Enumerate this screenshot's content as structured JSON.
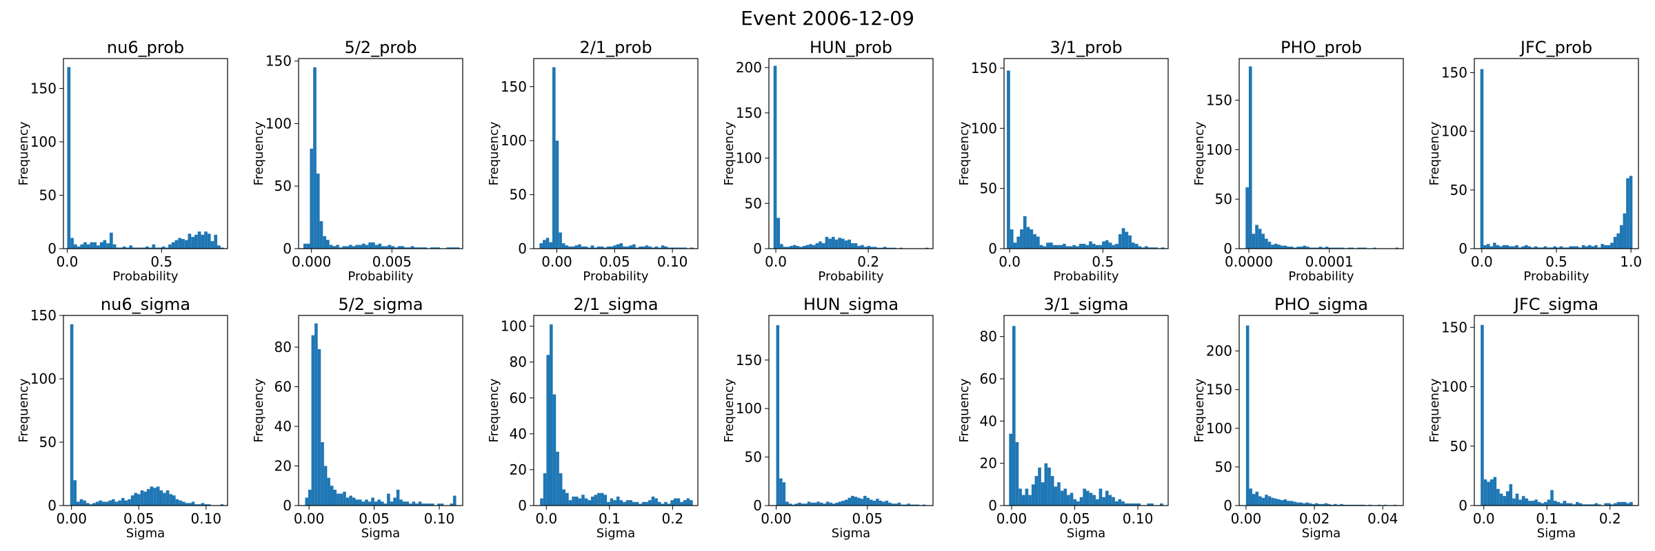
{
  "figure": {
    "title": "Event 2006-12-09"
  },
  "chart_data": [
    {
      "type": "bar",
      "title": "nu6_prob",
      "xlabel": "Probability",
      "ylabel": "Frequency",
      "xlim": [
        -0.02,
        0.85
      ],
      "ylim": [
        0,
        178
      ],
      "xticks": [
        0,
        0.5
      ],
      "xtick_labels": [
        "0.0",
        "0.5"
      ],
      "yticks": [
        0,
        50,
        100,
        150
      ],
      "bin_range": [
        0,
        0.83
      ],
      "values": [
        170,
        10,
        4,
        2,
        4,
        6,
        4,
        6,
        6,
        3,
        6,
        8,
        5,
        15,
        4,
        1,
        1,
        2,
        1,
        3,
        1,
        1,
        1,
        1,
        2,
        1,
        4,
        1,
        1,
        2,
        1,
        4,
        6,
        8,
        10,
        9,
        8,
        14,
        11,
        13,
        16,
        13,
        16,
        14,
        7,
        13,
        3,
        1
      ]
    },
    {
      "type": "bar",
      "title": "5/2_prob",
      "xlabel": "Probability",
      "ylabel": "Frequency",
      "xlim": [
        -0.0008,
        0.0094
      ],
      "ylim": [
        0,
        152
      ],
      "xticks": [
        0,
        0.005
      ],
      "xtick_labels": [
        "0.000",
        "0.005"
      ],
      "yticks": [
        0,
        50,
        100,
        150
      ],
      "bin_range": [
        -0.0005,
        0.0092
      ],
      "values": [
        4,
        4,
        80,
        145,
        60,
        22,
        10,
        7,
        3,
        2,
        3,
        1,
        2,
        2,
        3,
        2,
        3,
        3,
        4,
        3,
        5,
        5,
        3,
        4,
        2,
        2,
        3,
        2,
        1,
        2,
        2,
        1,
        1,
        2,
        1,
        1,
        1,
        1,
        0,
        1,
        1,
        1,
        0,
        0,
        1,
        1,
        1,
        1
      ]
    },
    {
      "type": "bar",
      "title": "2/1_prob",
      "xlabel": "Probability",
      "ylabel": "Frequency",
      "xlim": [
        -0.02,
        0.122
      ],
      "ylim": [
        0,
        176
      ],
      "xticks": [
        0,
        0.05,
        0.1
      ],
      "xtick_labels": [
        "0.00",
        "0.05",
        "0.10"
      ],
      "yticks": [
        0,
        50,
        100,
        150
      ],
      "bin_range": [
        -0.015,
        0.118
      ],
      "values": [
        5,
        8,
        10,
        6,
        168,
        100,
        15,
        5,
        3,
        2,
        2,
        3,
        4,
        2,
        2,
        1,
        3,
        1,
        2,
        2,
        1,
        2,
        2,
        3,
        4,
        5,
        2,
        2,
        3,
        4,
        1,
        2,
        2,
        3,
        2,
        1,
        2,
        1,
        3,
        2,
        1,
        1,
        1,
        1,
        1,
        1,
        0,
        1
      ]
    },
    {
      "type": "bar",
      "title": "HUN_prob",
      "xlabel": "Probability",
      "ylabel": "Frequency",
      "xlim": [
        -0.015,
        0.34
      ],
      "ylim": [
        0,
        210
      ],
      "xticks": [
        0,
        0.2
      ],
      "xtick_labels": [
        "0.0",
        "0.2"
      ],
      "yticks": [
        0,
        50,
        100,
        150,
        200
      ],
      "bin_range": [
        -0.005,
        0.33
      ],
      "values": [
        202,
        34,
        5,
        2,
        2,
        3,
        4,
        3,
        2,
        3,
        4,
        5,
        4,
        6,
        8,
        6,
        13,
        11,
        13,
        10,
        12,
        11,
        9,
        10,
        6,
        6,
        3,
        4,
        2,
        3,
        2,
        2,
        1,
        1,
        2,
        1,
        1,
        1,
        0,
        1,
        0,
        0,
        0,
        0,
        0,
        0,
        0,
        1
      ]
    },
    {
      "type": "bar",
      "title": "3/1_prob",
      "xlabel": "Probability",
      "ylabel": "Frequency",
      "xlim": [
        -0.03,
        0.85
      ],
      "ylim": [
        0,
        158
      ],
      "xticks": [
        0,
        0.5
      ],
      "xtick_labels": [
        "0.0",
        "0.5"
      ],
      "yticks": [
        0,
        50,
        100,
        150
      ],
      "bin_range": [
        -0.015,
        0.83
      ],
      "values": [
        148,
        16,
        5,
        10,
        16,
        27,
        18,
        16,
        12,
        10,
        3,
        2,
        5,
        5,
        3,
        3,
        3,
        4,
        2,
        2,
        3,
        2,
        4,
        4,
        3,
        6,
        4,
        3,
        3,
        6,
        7,
        5,
        3,
        4,
        12,
        17,
        14,
        11,
        5,
        4,
        2,
        1,
        2,
        1,
        1,
        1,
        0,
        1
      ]
    },
    {
      "type": "bar",
      "title": "PHO_prob",
      "xlabel": "Probability",
      "ylabel": "Frequency",
      "xlim": [
        -1.2e-05,
        0.000192
      ],
      "ylim": [
        0,
        192
      ],
      "xticks": [
        0,
        0.0001
      ],
      "xtick_labels": [
        "0.0000",
        "0.0001"
      ],
      "yticks": [
        0,
        50,
        100,
        150
      ],
      "bin_range": [
        -4e-06,
        0.000186
      ],
      "values": [
        62,
        184,
        15,
        24,
        20,
        15,
        10,
        7,
        4,
        5,
        4,
        3,
        3,
        2,
        2,
        1,
        2,
        2,
        3,
        2,
        1,
        1,
        1,
        2,
        1,
        2,
        1,
        1,
        1,
        1,
        1,
        0,
        1,
        1,
        0,
        1,
        1,
        1,
        0,
        0,
        1,
        0,
        0,
        0,
        0,
        0,
        0,
        1
      ]
    },
    {
      "type": "bar",
      "title": "JFC_prob",
      "xlabel": "Probability",
      "ylabel": "Frequency",
      "xlim": [
        -0.05,
        1.05
      ],
      "ylim": [
        0,
        162
      ],
      "xticks": [
        0,
        0.5,
        1
      ],
      "xtick_labels": [
        "0.0",
        "0.5",
        "1.0"
      ],
      "yticks": [
        0,
        50,
        100,
        150
      ],
      "bin_range": [
        -0.01,
        1.01
      ],
      "values": [
        153,
        3,
        4,
        2,
        5,
        3,
        2,
        3,
        3,
        2,
        2,
        3,
        1,
        2,
        3,
        2,
        1,
        2,
        1,
        1,
        2,
        1,
        1,
        2,
        1,
        2,
        1,
        1,
        2,
        2,
        2,
        1,
        3,
        2,
        3,
        2,
        3,
        1,
        4,
        3,
        3,
        5,
        10,
        13,
        20,
        30,
        60,
        62
      ]
    },
    {
      "type": "bar",
      "title": "nu6_sigma",
      "xlabel": "Sigma",
      "ylabel": "Frequency",
      "xlim": [
        -0.006,
        0.116
      ],
      "ylim": [
        0,
        150
      ],
      "xticks": [
        0,
        0.05,
        0.1
      ],
      "xtick_labels": [
        "0.00",
        "0.05",
        "0.10"
      ],
      "yticks": [
        0,
        50,
        100,
        150
      ],
      "bin_range": [
        -0.001,
        0.113
      ],
      "values": [
        143,
        20,
        3,
        5,
        4,
        2,
        1,
        2,
        3,
        4,
        3,
        3,
        4,
        5,
        3,
        4,
        6,
        4,
        5,
        8,
        10,
        9,
        12,
        11,
        13,
        15,
        14,
        15,
        12,
        10,
        12,
        9,
        8,
        5,
        4,
        3,
        2,
        2,
        3,
        1,
        1,
        2,
        1,
        1,
        0,
        0,
        0,
        1
      ]
    },
    {
      "type": "bar",
      "title": "5/2_sigma",
      "xlabel": "Sigma",
      "ylabel": "Frequency",
      "xlim": [
        -0.008,
        0.118
      ],
      "ylim": [
        0,
        96
      ],
      "xticks": [
        0,
        0.05,
        0.1
      ],
      "xtick_labels": [
        "0.00",
        "0.05",
        "0.10"
      ],
      "yticks": [
        0,
        20,
        40,
        60,
        80
      ],
      "bin_range": [
        -0.003,
        0.113
      ],
      "values": [
        4,
        8,
        86,
        92,
        79,
        32,
        20,
        14,
        10,
        8,
        6,
        6,
        7,
        4,
        5,
        4,
        3,
        3,
        2,
        3,
        2,
        4,
        2,
        3,
        2,
        1,
        6,
        2,
        4,
        8,
        3,
        2,
        2,
        1,
        2,
        1,
        2,
        1,
        1,
        1,
        1,
        0,
        1,
        1,
        0,
        0,
        1,
        5
      ]
    },
    {
      "type": "bar",
      "title": "2/1_sigma",
      "xlabel": "Sigma",
      "ylabel": "Frequency",
      "xlim": [
        -0.02,
        0.24
      ],
      "ylim": [
        0,
        106
      ],
      "xticks": [
        0,
        0.1,
        0.2
      ],
      "xtick_labels": [
        "0.0",
        "0.1",
        "0.2"
      ],
      "yticks": [
        0,
        20,
        40,
        60,
        80,
        100
      ],
      "bin_range": [
        -0.01,
        0.232
      ],
      "values": [
        4,
        18,
        84,
        101,
        62,
        30,
        18,
        9,
        7,
        3,
        5,
        5,
        4,
        6,
        4,
        3,
        5,
        6,
        7,
        7,
        6,
        2,
        4,
        3,
        5,
        3,
        2,
        3,
        3,
        2,
        2,
        1,
        2,
        2,
        3,
        5,
        4,
        2,
        1,
        2,
        1,
        3,
        4,
        4,
        2,
        3,
        4,
        3
      ]
    },
    {
      "type": "bar",
      "title": "HUN_sigma",
      "xlabel": "Sigma",
      "ylabel": "Frequency",
      "xlim": [
        -0.004,
        0.086
      ],
      "ylim": [
        0,
        196
      ],
      "xticks": [
        0,
        0.05
      ],
      "xtick_labels": [
        "0.00",
        "0.05"
      ],
      "yticks": [
        0,
        50,
        100,
        150
      ],
      "bin_range": [
        0.0,
        0.082
      ],
      "values": [
        186,
        28,
        24,
        4,
        2,
        1,
        2,
        3,
        2,
        2,
        4,
        3,
        3,
        4,
        3,
        2,
        4,
        3,
        2,
        3,
        4,
        5,
        6,
        8,
        10,
        9,
        8,
        7,
        10,
        8,
        6,
        5,
        7,
        5,
        4,
        5,
        3,
        2,
        2,
        3,
        1,
        1,
        2,
        1,
        1,
        1,
        0,
        1
      ]
    },
    {
      "type": "bar",
      "title": "3/1_sigma",
      "xlabel": "Sigma",
      "ylabel": "Frequency",
      "xlim": [
        -0.006,
        0.124
      ],
      "ylim": [
        0,
        90
      ],
      "xticks": [
        0,
        0.05,
        0.1
      ],
      "xtick_labels": [
        "0.00",
        "0.05",
        "0.10"
      ],
      "yticks": [
        0,
        20,
        40,
        60,
        80
      ],
      "bin_range": [
        -0.002,
        0.12
      ],
      "values": [
        34,
        85,
        30,
        8,
        5,
        8,
        5,
        10,
        14,
        18,
        11,
        20,
        18,
        14,
        9,
        11,
        7,
        8,
        5,
        6,
        3,
        2,
        4,
        8,
        7,
        6,
        5,
        3,
        8,
        4,
        7,
        5,
        4,
        2,
        3,
        2,
        1,
        1,
        1,
        1,
        1,
        0,
        0,
        1,
        1,
        0,
        0,
        1
      ]
    },
    {
      "type": "bar",
      "title": "PHO_sigma",
      "xlabel": "Sigma",
      "ylabel": "Frequency",
      "xlim": [
        -0.002,
        0.046
      ],
      "ylim": [
        0,
        246
      ],
      "xticks": [
        0,
        0.02,
        0.04
      ],
      "xtick_labels": [
        "0.00",
        "0.02",
        "0.04"
      ],
      "yticks": [
        0,
        50,
        100,
        150,
        200
      ],
      "bin_range": [
        0.0,
        0.044
      ],
      "values": [
        233,
        22,
        15,
        18,
        12,
        10,
        14,
        12,
        10,
        9,
        8,
        7,
        8,
        6,
        6,
        5,
        4,
        4,
        3,
        4,
        3,
        2,
        3,
        2,
        2,
        3,
        2,
        1,
        2,
        1,
        2,
        1,
        1,
        1,
        1,
        1,
        1,
        1,
        0,
        1,
        0,
        0,
        1,
        0,
        1,
        0,
        0,
        1
      ]
    },
    {
      "type": "bar",
      "title": "JFC_sigma",
      "xlabel": "Sigma",
      "ylabel": "Frequency",
      "xlim": [
        -0.015,
        0.245
      ],
      "ylim": [
        0,
        160
      ],
      "xticks": [
        0,
        0.1,
        0.2
      ],
      "xtick_labels": [
        "0.0",
        "0.1",
        "0.2"
      ],
      "yticks": [
        0,
        50,
        100,
        150
      ],
      "bin_range": [
        -0.005,
        0.236
      ],
      "values": [
        152,
        22,
        20,
        22,
        24,
        14,
        10,
        8,
        12,
        18,
        6,
        10,
        5,
        8,
        6,
        4,
        4,
        5,
        3,
        2,
        3,
        5,
        13,
        4,
        3,
        2,
        4,
        2,
        2,
        1,
        3,
        2,
        1,
        1,
        1,
        1,
        2,
        1,
        0,
        2,
        2,
        1,
        2,
        3,
        3,
        3,
        2,
        3
      ]
    }
  ]
}
